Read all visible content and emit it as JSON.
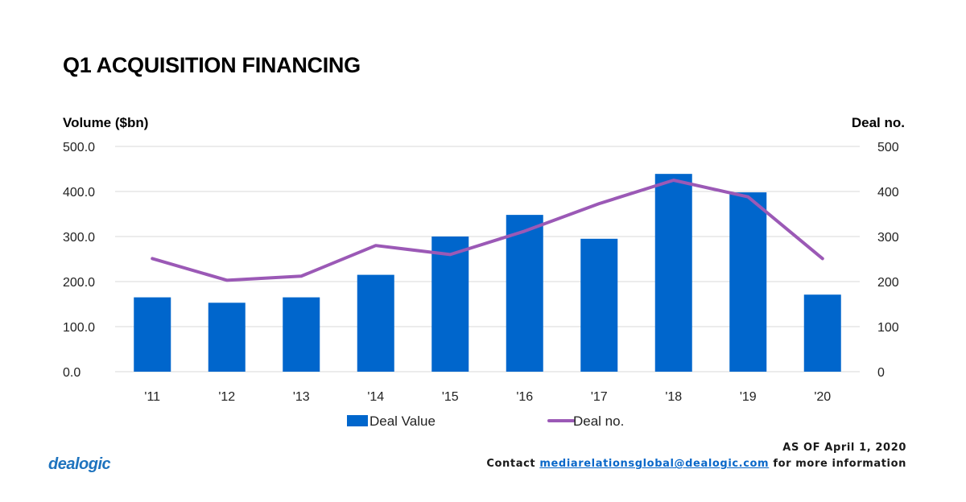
{
  "title": "Q1 ACQUISITION FINANCING",
  "colors": {
    "bar": "#0066CC",
    "line": "#9B59B6",
    "grid": "#D9D9D9",
    "logo": "#1E73BE",
    "link": "#0A68C9"
  },
  "chart_data": {
    "type": "bar",
    "categories": [
      "'11",
      "'12",
      "'13",
      "'14",
      "'15",
      "'16",
      "'17",
      "'18",
      "'19",
      "'20"
    ],
    "series": [
      {
        "name": "Deal Value",
        "type": "bar",
        "axis": "left",
        "values": [
          165,
          153,
          165,
          215,
          300,
          348,
          295,
          439,
          398,
          171
        ]
      },
      {
        "name": "Deal no.",
        "type": "line",
        "axis": "right",
        "values": [
          251,
          203,
          212,
          280,
          260,
          312,
          373,
          425,
          388,
          251
        ]
      }
    ],
    "ylabel_left": "Volume ($bn)",
    "ylabel_right": "Deal no.",
    "ylim_left": [
      0,
      500
    ],
    "ylim_right": [
      0,
      500
    ],
    "yticks_left": [
      "0.0",
      "100.0",
      "200.0",
      "300.0",
      "400.0",
      "500.0"
    ],
    "yticks_right": [
      "0",
      "100",
      "200",
      "300",
      "400",
      "500"
    ],
    "grid": true,
    "legend_position": "bottom"
  },
  "logo_text": "dealogic",
  "footer": {
    "as_of": "AS OF April 1, 2020",
    "contact_prefix": "Contact",
    "contact_email": "mediarelationsglobal@dealogic.com",
    "contact_suffix": "for more information"
  }
}
